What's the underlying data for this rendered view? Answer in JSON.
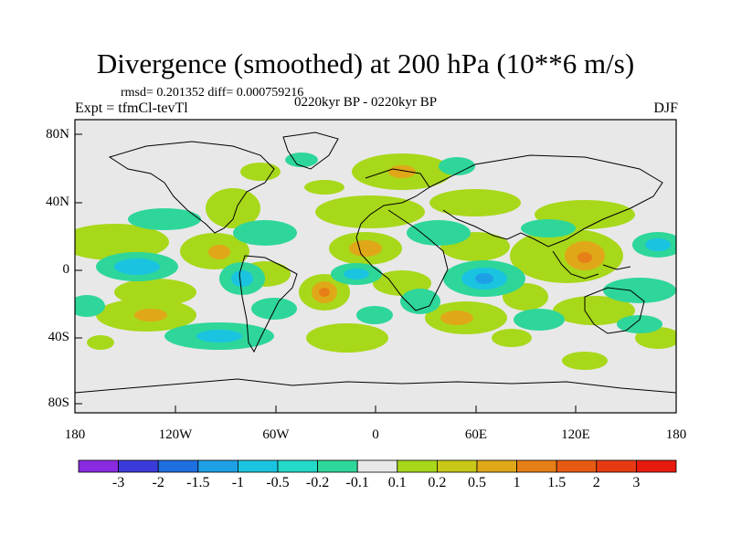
{
  "title": "Divergence (smoothed) at 200 hPa (10**6 m/s)",
  "stats": "rmsd= 0.201352  diff= 0.000759216",
  "experiment": "Expt = tfmCl-tevTl",
  "period": "0220kyr BP - 0220kyr BP",
  "season": "DJF",
  "lat_labels": [
    "80N",
    "40N",
    "0",
    "40S",
    "80S"
  ],
  "lon_labels": [
    "180",
    "120W",
    "60W",
    "0",
    "60E",
    "120E",
    "180"
  ],
  "colorbar": {
    "labels": [
      "-3",
      "-2",
      "-1.5",
      "-1",
      "-0.5",
      "-0.2",
      "-0.1",
      "0.1",
      "0.2",
      "0.5",
      "1",
      "1.5",
      "2",
      "3"
    ],
    "colors": [
      "#8a2be2",
      "#3b3bd9",
      "#1f6fe0",
      "#1ea0e6",
      "#1ac4e0",
      "#23d9c8",
      "#2ed69a",
      "#e8e8e8",
      "#a8d81a",
      "#c9c818",
      "#e0a818",
      "#e67f17",
      "#e85a14",
      "#e83a12",
      "#e81a0e"
    ]
  },
  "field_colors": {
    "background": "#e8e8e8",
    "pos_weak": "#a8d81a",
    "pos_mid": "#c9c818",
    "pos_strong": "#e0a818",
    "pos_max": "#e67f17",
    "neg_weak": "#2ed69a",
    "neg_mid": "#23d9c8",
    "neg_strong": "#1ac4e0",
    "neg_max": "#1ea0e6"
  }
}
